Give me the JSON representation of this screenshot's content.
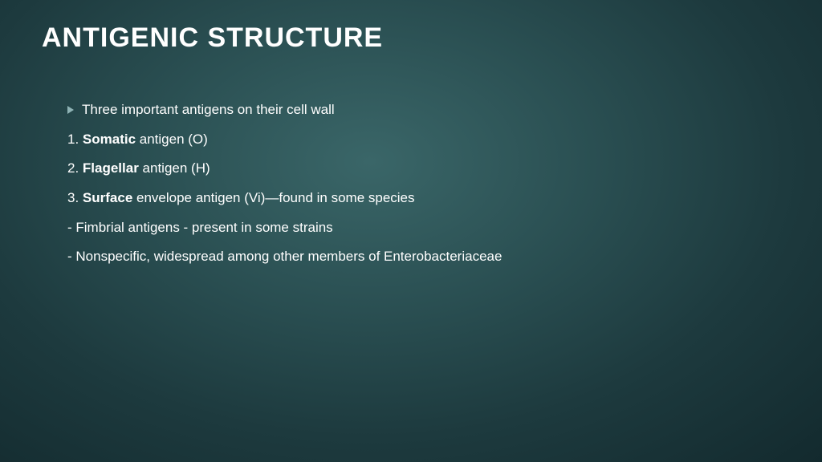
{
  "title": "ANTIGENIC STRUCTURE",
  "bullet": {
    "text": "Three important antigens on their cell wall"
  },
  "item1": {
    "prefix": "1. ",
    "bold": "Somatic",
    "rest": " antigen (O)"
  },
  "item2": {
    "prefix": "2. ",
    "bold": "Flagellar",
    "rest": " antigen (H)"
  },
  "item3": {
    "prefix": "3. ",
    "bold": "Surface",
    "rest": " envelope antigen (Vi)—found in some species"
  },
  "dash1": "- Fimbrial antigens - present in some strains",
  "dash2": "- Nonspecific, widespread among other members of Enterobacteriaceae",
  "colors": {
    "text": "#ffffff",
    "bullet_arrow": "#8fb3b5",
    "bg_center": "#3a6668",
    "bg_edge": "#132a2e"
  },
  "typography": {
    "title_fontsize": 34,
    "body_fontsize": 17,
    "font_family": "Century Gothic"
  }
}
